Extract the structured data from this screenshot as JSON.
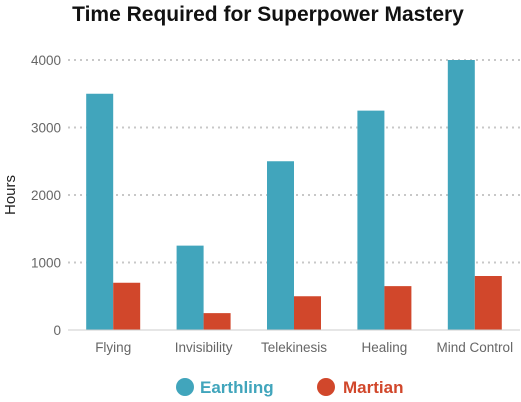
{
  "chart_data": {
    "type": "bar",
    "title": "Time Required for Superpower Mastery",
    "xlabel": "",
    "ylabel": "Hours",
    "categories": [
      "Flying",
      "Invisibility",
      "Telekinesis",
      "Healing",
      "Mind Control"
    ],
    "series": [
      {
        "name": "Earthling",
        "color": "#41a5bc",
        "values": [
          3500,
          1250,
          2500,
          3250,
          4000
        ]
      },
      {
        "name": "Martian",
        "color": "#d1472b",
        "values": [
          700,
          250,
          500,
          650,
          800
        ]
      }
    ],
    "ylim": [
      0,
      4000
    ],
    "yticks": [
      0,
      1000,
      2000,
      3000,
      4000
    ],
    "grid": true,
    "legend_position": "bottom"
  }
}
